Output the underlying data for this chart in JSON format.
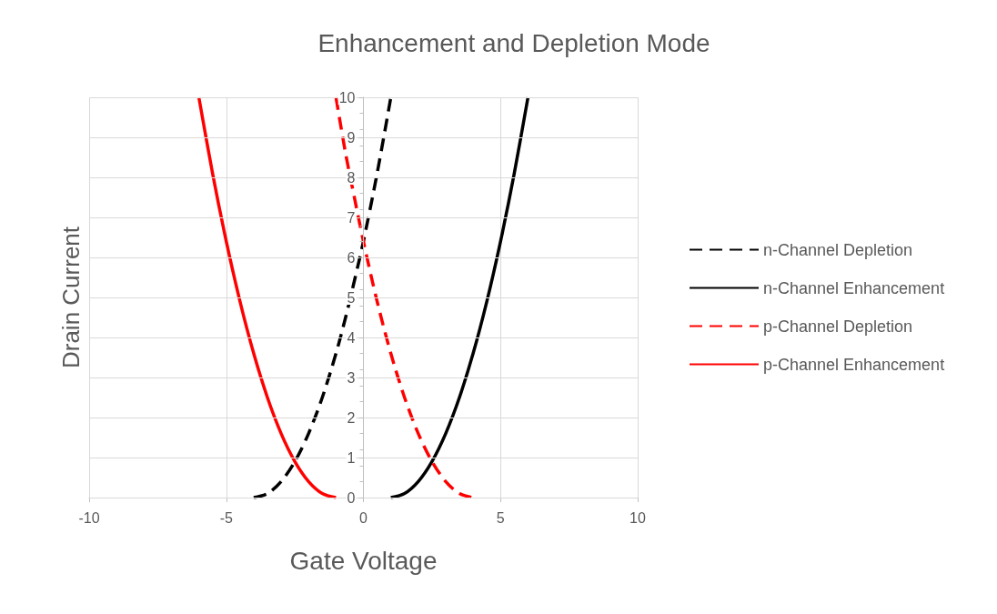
{
  "chart_data": {
    "type": "line",
    "title": "Enhancement and Depletion Mode",
    "xlabel": "Gate Voltage",
    "ylabel": "Drain Current",
    "xlim": [
      -10,
      10
    ],
    "xticks": [
      -10,
      -5,
      0,
      5,
      10
    ],
    "ylim": [
      0,
      10
    ],
    "yticks": [
      0,
      1,
      2,
      3,
      4,
      5,
      6,
      7,
      8,
      9,
      10
    ],
    "grid": true,
    "legend": "right",
    "marker": "none",
    "series": [
      {
        "name": "n-Channel Depletion",
        "color": "#000000",
        "line_style": "dashed",
        "x": [
          -4,
          -3.5,
          -3,
          -2.5,
          -2,
          -1.5,
          -1,
          -0.65,
          -0.3,
          0,
          0.5,
          1
        ],
        "values": [
          0,
          0.1,
          0.4,
          0.9,
          1.6,
          2.5,
          3.6,
          4.5,
          5.5,
          6.4,
          8.1,
          10
        ]
      },
      {
        "name": "n-Channel Enhancement",
        "color": "#000000",
        "line_style": "solid",
        "x": [
          1,
          1.5,
          2,
          2.5,
          3,
          3.5,
          4,
          4.5,
          5,
          5.5,
          6
        ],
        "values": [
          0,
          0.1,
          0.4,
          0.9,
          1.6,
          2.5,
          3.6,
          4.9,
          6.4,
          8.1,
          10
        ]
      },
      {
        "name": "p-Channel Depletion",
        "color": "#ff0000",
        "line_style": "dashed",
        "x": [
          -1,
          -0.65,
          -0.3,
          0,
          0.5,
          1,
          1.5,
          2,
          2.5,
          3,
          3.5,
          4
        ],
        "values": [
          10,
          8.6,
          7.4,
          6.4,
          4.9,
          3.6,
          2.5,
          1.6,
          0.9,
          0.4,
          0.1,
          0
        ]
      },
      {
        "name": "p-Channel Enhancement",
        "color": "#ff0000",
        "line_style": "solid",
        "x": [
          -6,
          -5.5,
          -5,
          -4.5,
          -4,
          -3.5,
          -3,
          -2.5,
          -2,
          -1.5,
          -1
        ],
        "values": [
          10,
          8.1,
          6.4,
          4.9,
          3.6,
          2.5,
          1.6,
          0.9,
          0.4,
          0.1,
          0
        ]
      }
    ]
  }
}
